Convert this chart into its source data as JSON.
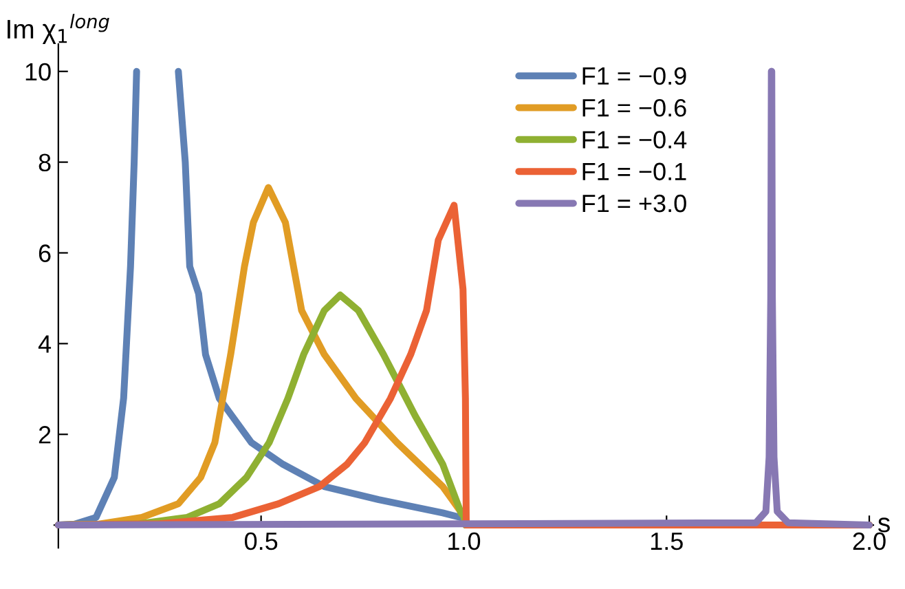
{
  "chart_data": {
    "type": "line",
    "xlabel": "s",
    "ylabel": "Im χ$_{1}$$^{long}$",
    "xlim": [
      -0.01,
      2.01
    ],
    "ylim": [
      -0.5,
      10.6
    ],
    "xticks": [
      {
        "value": 0.5,
        "label": "0.5"
      },
      {
        "value": 1.0,
        "label": "1.0"
      },
      {
        "value": 1.5,
        "label": "1.5"
      },
      {
        "value": 2.0,
        "label": "2.0"
      }
    ],
    "yticks": [
      2,
      4,
      6,
      8,
      10
    ],
    "legend": "top right",
    "grid": false,
    "marker": "none",
    "line_style": "solid",
    "series": [
      {
        "name": "F1 = −0.9",
        "color": "#5e81b5",
        "x": [
          0,
          0.04,
          0.093,
          0.138,
          0.161,
          0.178,
          0.187,
          0.193,
          0.24,
          0.296,
          0.313,
          0.324,
          0.346,
          0.363,
          0.397,
          0.476,
          0.554,
          0.656,
          0.79,
          0.948,
          1.0,
          1.005,
          2.0
        ],
        "values": [
          0,
          0.02,
          0.17,
          1.05,
          2.8,
          5.7,
          8.0,
          10.0,
          null,
          10.0,
          8.0,
          5.7,
          5.1,
          3.76,
          2.79,
          1.82,
          1.34,
          0.85,
          0.56,
          0.27,
          0.15,
          0,
          0
        ]
      },
      {
        "name": "F1 = −0.6",
        "color": "#e19c24",
        "x": [
          0,
          0.1,
          0.206,
          0.296,
          0.351,
          0.386,
          0.425,
          0.459,
          0.481,
          0.518,
          0.56,
          0.6,
          0.656,
          0.734,
          0.835,
          0.948,
          1.0,
          1.005,
          2.0
        ],
        "values": [
          0,
          0.02,
          0.17,
          0.47,
          1.05,
          1.82,
          3.76,
          5.7,
          6.67,
          7.44,
          6.67,
          4.73,
          3.76,
          2.79,
          1.82,
          0.85,
          0.2,
          0,
          0
        ]
      },
      {
        "name": "F1 = −0.4",
        "color": "#8fb032",
        "x": [
          0,
          0.2,
          0.318,
          0.397,
          0.464,
          0.52,
          0.566,
          0.605,
          0.656,
          0.695,
          0.74,
          0.802,
          0.858,
          0.88,
          0.948,
          0.993,
          1.0,
          1.005,
          2.0
        ],
        "values": [
          0,
          0.03,
          0.17,
          0.47,
          1.05,
          1.82,
          2.79,
          3.76,
          4.73,
          5.07,
          4.73,
          3.76,
          2.79,
          2.41,
          1.34,
          0.27,
          0.2,
          0,
          0
        ]
      },
      {
        "name": "F1 = −0.1",
        "color": "#eb6235",
        "x": [
          0,
          0.25,
          0.43,
          0.543,
          0.644,
          0.712,
          0.756,
          0.819,
          0.869,
          0.908,
          0.937,
          0.976,
          0.998,
          1.004,
          1.006,
          2.0
        ],
        "values": [
          0,
          0.03,
          0.17,
          0.47,
          0.85,
          1.34,
          1.82,
          2.79,
          3.76,
          4.73,
          6.28,
          7.05,
          5.2,
          2.79,
          0,
          0
        ]
      },
      {
        "name": "F1 = +3.0",
        "color": "#8778b3",
        "x": [
          0,
          1.72,
          1.745,
          1.753,
          1.757,
          1.7585,
          1.759,
          1.7595,
          1.761,
          1.765,
          1.773,
          1.8,
          2.0
        ],
        "values": [
          0,
          0.05,
          0.3,
          1.5,
          5.0,
          10.0,
          null,
          10.0,
          5.0,
          1.5,
          0.3,
          0.05,
          0
        ]
      }
    ]
  }
}
